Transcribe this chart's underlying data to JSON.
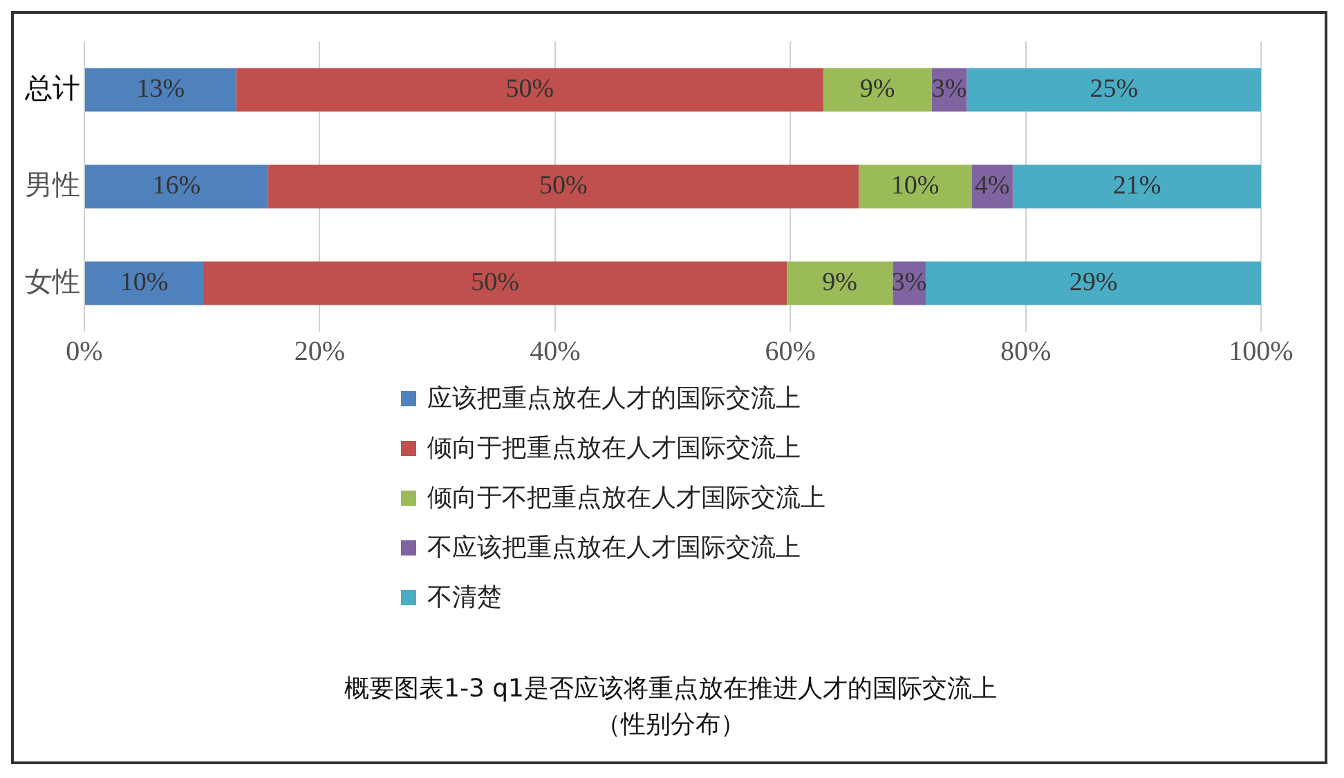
{
  "chart_data": {
    "type": "bar",
    "orientation": "horizontal",
    "stacked": true,
    "categories": [
      "总计",
      "男性",
      "女性"
    ],
    "series": [
      {
        "name": "应该把重点放在人才的国际交流上",
        "color": "#4f81bd",
        "values": [
          12.9,
          15.6,
          10.1
        ],
        "value_labels": [
          "13%",
          "16%",
          "10%"
        ]
      },
      {
        "name": "倾向于把重点放在人才国际交流上",
        "color": "#c0504d",
        "values": [
          49.9,
          50.2,
          49.6
        ],
        "value_labels": [
          "50%",
          "50%",
          "50%"
        ]
      },
      {
        "name": "倾向于不把重点放在人才国际交流上",
        "color": "#9bbb59",
        "values": [
          9.2,
          9.6,
          9.0
        ],
        "value_labels": [
          "9%",
          "10%",
          "9%"
        ]
      },
      {
        "name": "不应该把重点放在人才国际交流上",
        "color": "#8064a2",
        "values": [
          3.0,
          3.5,
          2.8
        ],
        "value_labels": [
          "3%",
          "4%",
          "3%"
        ]
      },
      {
        "name": "不清楚",
        "color": "#4bacc6",
        "values": [
          25.0,
          21.1,
          28.5
        ],
        "value_labels": [
          "25%",
          "21%",
          "29%"
        ]
      }
    ],
    "xlim": [
      0,
      100
    ],
    "xticks": [
      {
        "value": 0,
        "label": "0%"
      },
      {
        "value": 20,
        "label": "20%"
      },
      {
        "value": 40,
        "label": "40%"
      },
      {
        "value": 60,
        "label": "60%"
      },
      {
        "value": 80,
        "label": "80%"
      },
      {
        "value": 100,
        "label": "100%"
      }
    ],
    "grid": "x",
    "legend": "bottom",
    "annotations": [
      "概要图表1-3  q1是否应该将重点放在推进人才的国际交流上",
      "（性别分布）"
    ]
  }
}
